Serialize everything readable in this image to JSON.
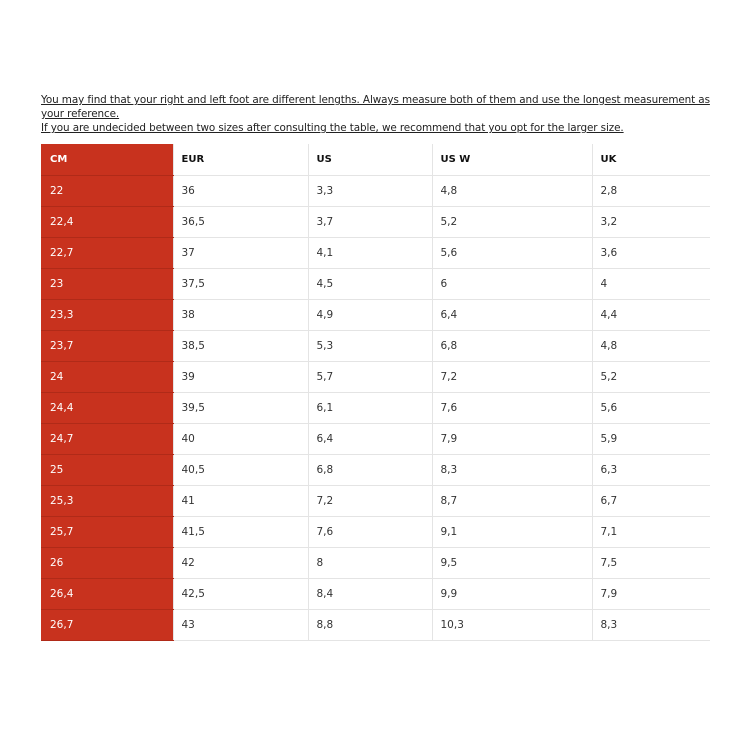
{
  "notes": {
    "line1": "You may find that your right and left foot are different lengths. Always measure both of them and use the longest measurement as your reference.",
    "line2": "If you are undecided between two sizes after consulting the table, we recommend that you opt for the larger size."
  },
  "colors": {
    "accent": "#c8321e"
  },
  "table": {
    "headers": [
      "CM",
      "EUR",
      "US",
      "US W",
      "UK"
    ],
    "rows": [
      [
        "22",
        "36",
        "3,3",
        "4,8",
        "2,8"
      ],
      [
        "22,4",
        "36,5",
        "3,7",
        "5,2",
        "3,2"
      ],
      [
        "22,7",
        "37",
        "4,1",
        "5,6",
        "3,6"
      ],
      [
        "23",
        "37,5",
        "4,5",
        "6",
        "4"
      ],
      [
        "23,3",
        "38",
        "4,9",
        "6,4",
        "4,4"
      ],
      [
        "23,7",
        "38,5",
        "5,3",
        "6,8",
        "4,8"
      ],
      [
        "24",
        "39",
        "5,7",
        "7,2",
        "5,2"
      ],
      [
        "24,4",
        "39,5",
        "6,1",
        "7,6",
        "5,6"
      ],
      [
        "24,7",
        "40",
        "6,4",
        "7,9",
        "5,9"
      ],
      [
        "25",
        "40,5",
        "6,8",
        "8,3",
        "6,3"
      ],
      [
        "25,3",
        "41",
        "7,2",
        "8,7",
        "6,7"
      ],
      [
        "25,7",
        "41,5",
        "7,6",
        "9,1",
        "7,1"
      ],
      [
        "26",
        "42",
        "8",
        "9,5",
        "7,5"
      ],
      [
        "26,4",
        "42,5",
        "8,4",
        "9,9",
        "7,9"
      ],
      [
        "26,7",
        "43",
        "8,8",
        "10,3",
        "8,3"
      ]
    ]
  }
}
